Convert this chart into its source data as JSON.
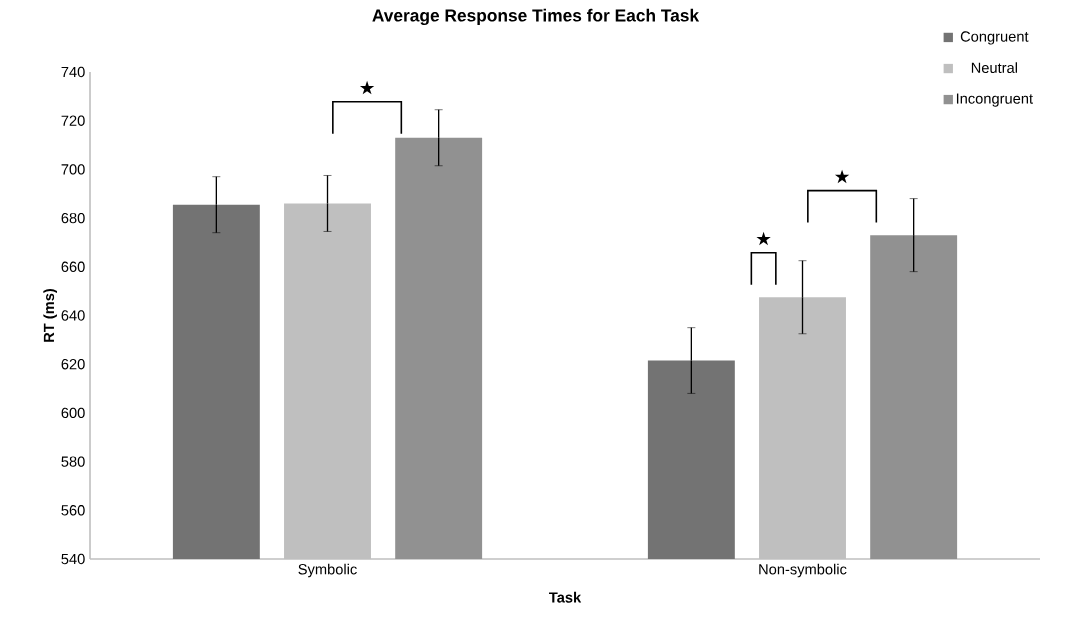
{
  "chart_data": {
    "type": "bar",
    "title": "Average Response Times for Each Task",
    "xlabel": "Task",
    "ylabel": "RT (ms)",
    "categories": [
      "Symbolic",
      "Non-symbolic"
    ],
    "series": [
      {
        "name": "Congruent",
        "color": "#737373",
        "values": [
          685.5,
          621.5
        ],
        "errors": [
          11.5,
          13.5
        ]
      },
      {
        "name": "Neutral",
        "color": "#bfbfbf",
        "values": [
          686,
          647.5
        ],
        "errors": [
          11.5,
          15
        ]
      },
      {
        "name": "Incongruent",
        "color": "#919191",
        "values": [
          713,
          673
        ],
        "errors": [
          11.5,
          15
        ]
      }
    ],
    "ylim": [
      540,
      740
    ],
    "yticks": [
      540,
      560,
      580,
      600,
      620,
      640,
      660,
      680,
      700,
      720,
      740
    ],
    "grid": false,
    "legend": "top right",
    "annotations": [
      "★",
      "★",
      "★"
    ]
  }
}
